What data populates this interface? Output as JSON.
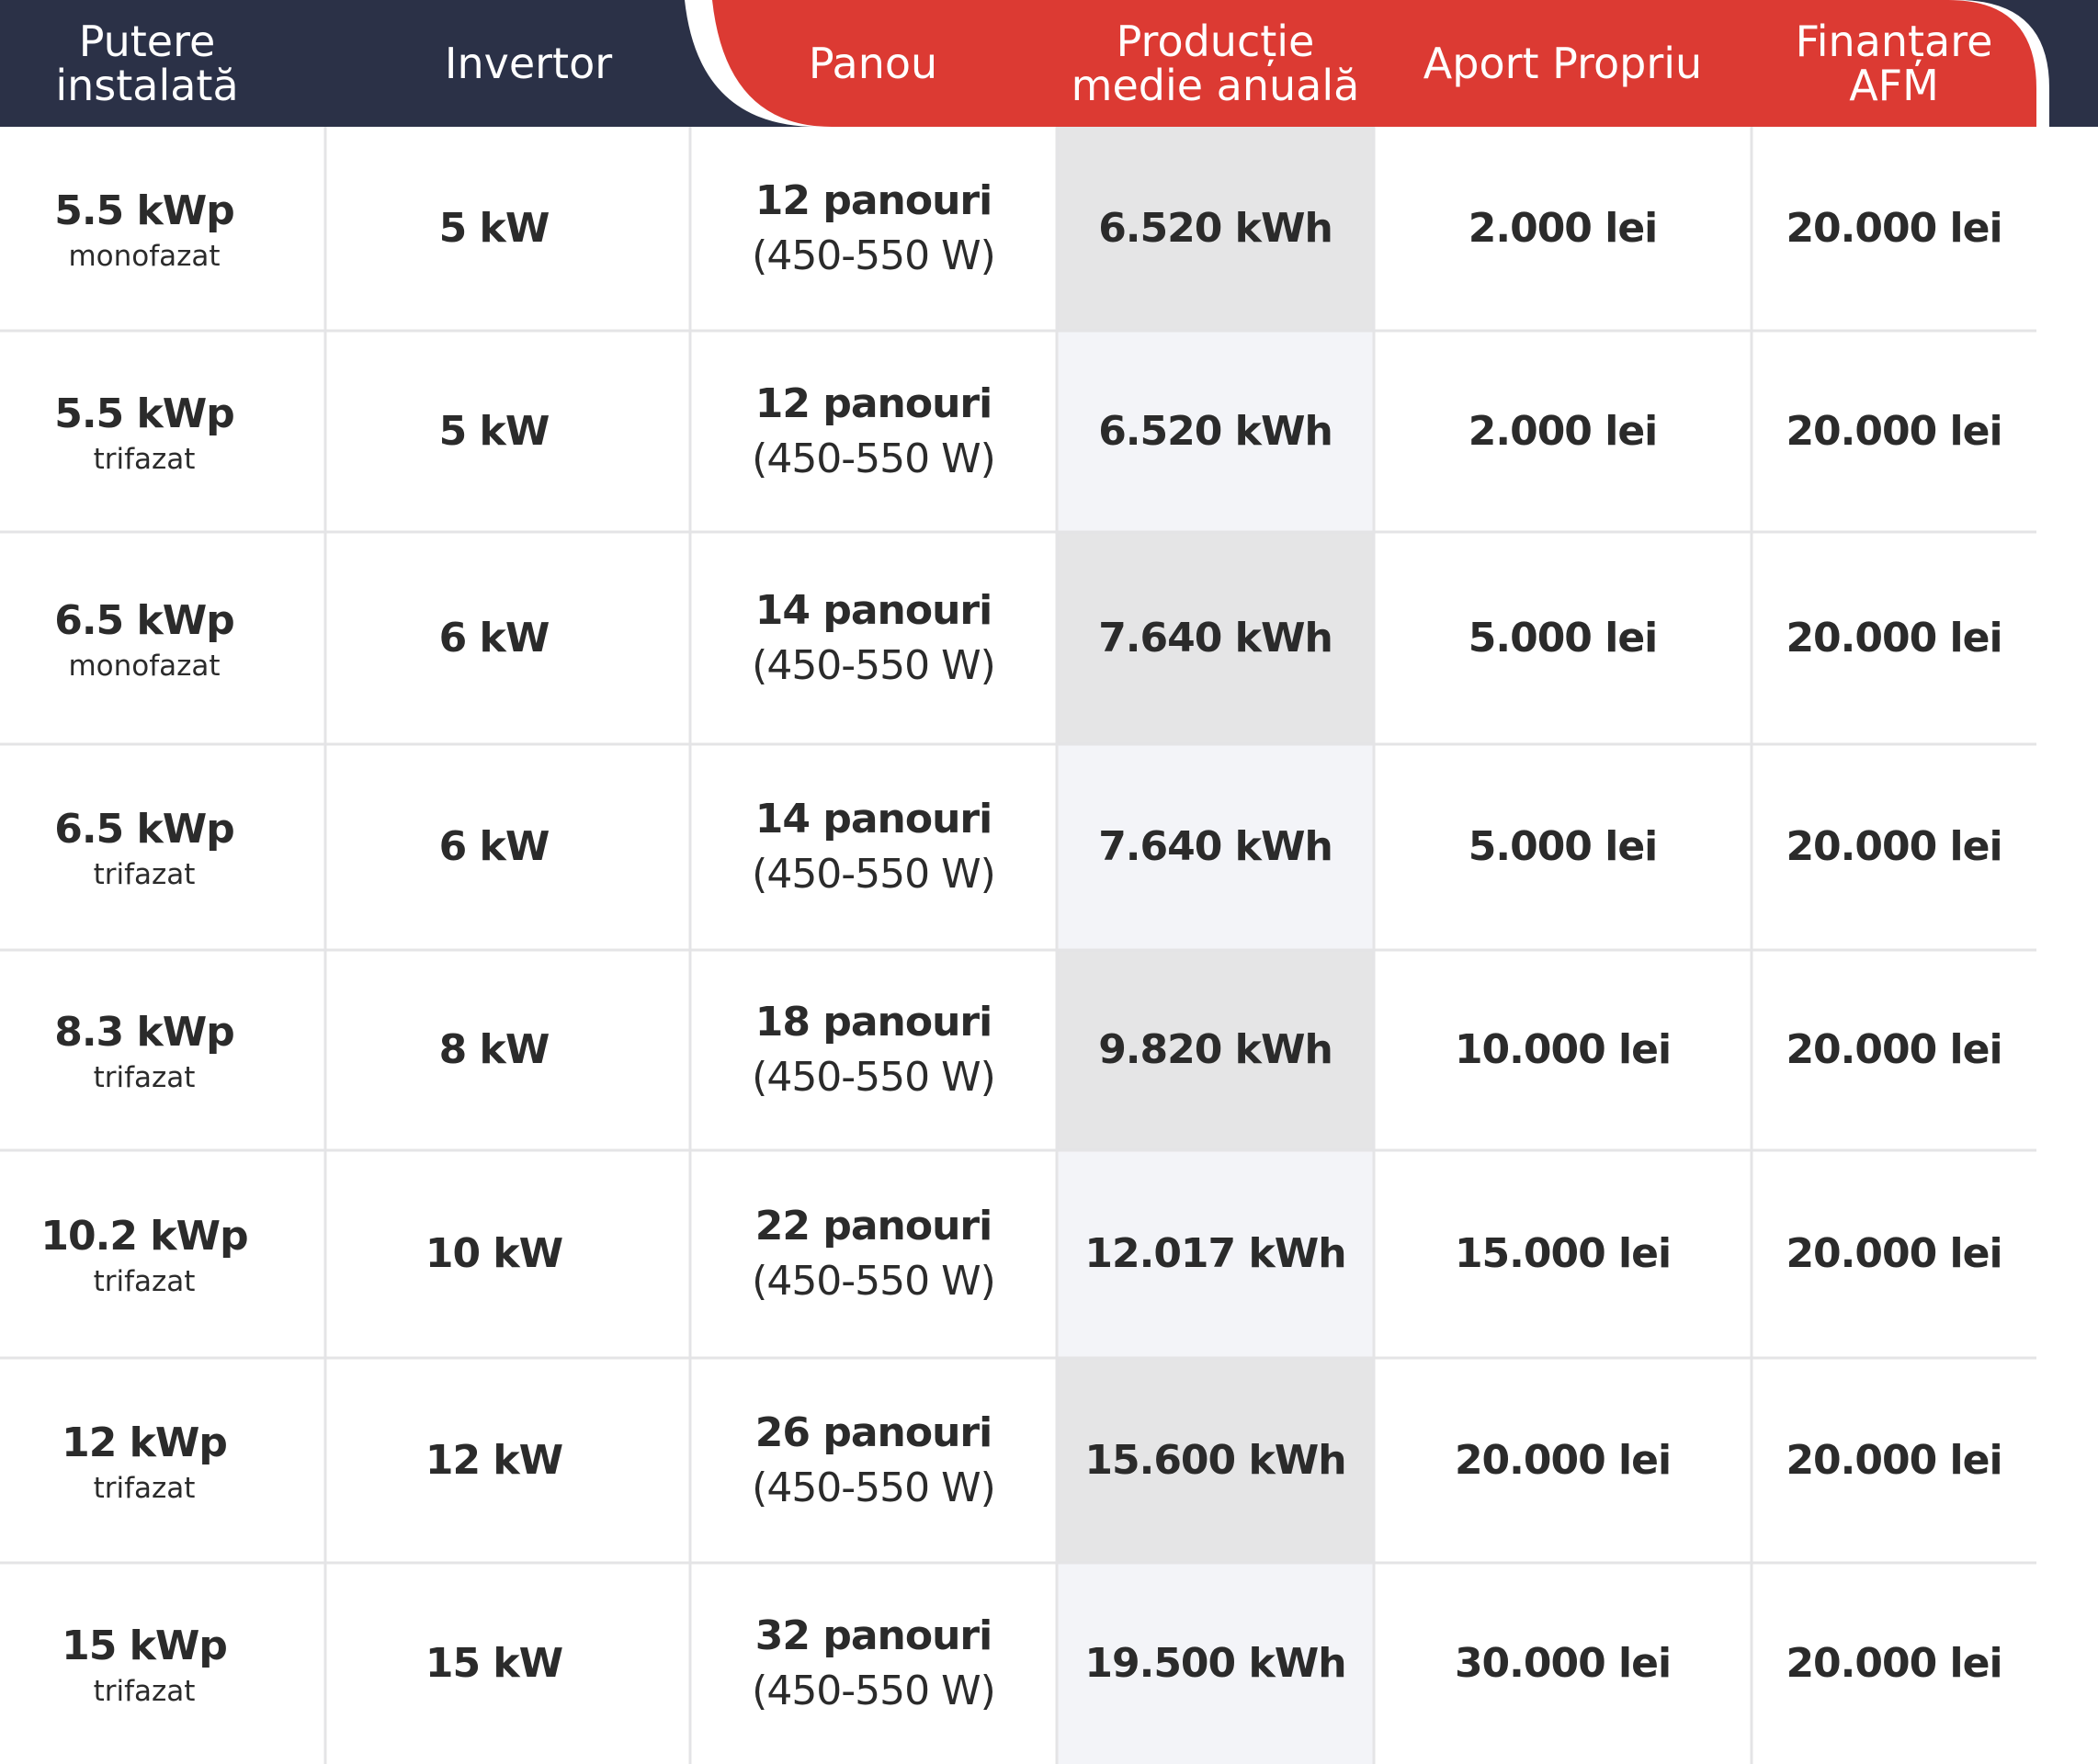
{
  "table": {
    "header": [
      [
        "Putere",
        "instalată"
      ],
      [
        "Invertor"
      ],
      [
        "Panou"
      ],
      [
        "Producție",
        "medie anuală"
      ],
      [
        "Aport Propriu"
      ],
      [
        "Finanțare",
        "AFM"
      ]
    ],
    "rows": [
      {
        "power": "5.5 kWp",
        "phase": "monofazat",
        "inverter": "5 kW",
        "panels": "12 panouri",
        "wattage": "(450-550 W)",
        "production": "6.520 kWh",
        "aport": "2.000 lei",
        "financing": "20.000 lei"
      },
      {
        "power": "5.5 kWp",
        "phase": "trifazat",
        "inverter": "5 kW",
        "panels": "12 panouri",
        "wattage": "(450-550 W)",
        "production": "6.520 kWh",
        "aport": "2.000 lei",
        "financing": "20.000 lei"
      },
      {
        "power": "6.5 kWp",
        "phase": "monofazat",
        "inverter": "6 kW",
        "panels": "14 panouri",
        "wattage": "(450-550 W)",
        "production": "7.640 kWh",
        "aport": "5.000 lei",
        "financing": "20.000 lei"
      },
      {
        "power": "6.5 kWp",
        "phase": "trifazat",
        "inverter": "6 kW",
        "panels": "14 panouri",
        "wattage": "(450-550 W)",
        "production": "7.640 kWh",
        "aport": "5.000 lei",
        "financing": "20.000 lei"
      },
      {
        "power": "8.3 kWp",
        "phase": "trifazat",
        "inverter": "8 kW",
        "panels": "18 panouri",
        "wattage": "(450-550 W)",
        "production": "9.820 kWh",
        "aport": "10.000 lei",
        "financing": "20.000 lei"
      },
      {
        "power": "10.2 kWp",
        "phase": "trifazat",
        "inverter": "10 kW",
        "panels": "22 panouri",
        "wattage": "(450-550 W)",
        "production": "12.017 kWh",
        "aport": "15.000 lei",
        "financing": "20.000 lei"
      },
      {
        "power": "12 kWp",
        "phase": "trifazat",
        "inverter": "12 kW",
        "panels": "26 panouri",
        "wattage": "(450-550 W)",
        "production": "15.600 kWh",
        "aport": "20.000 lei",
        "financing": "20.000 lei"
      },
      {
        "power": "15 kWp",
        "phase": "trifazat",
        "inverter": "15 kW",
        "panels": "32 panouri",
        "wattage": "(450-550 W)",
        "production": "19.500 kWh",
        "aport": "30.000 lei",
        "financing": "20.000 lei"
      }
    ]
  }
}
